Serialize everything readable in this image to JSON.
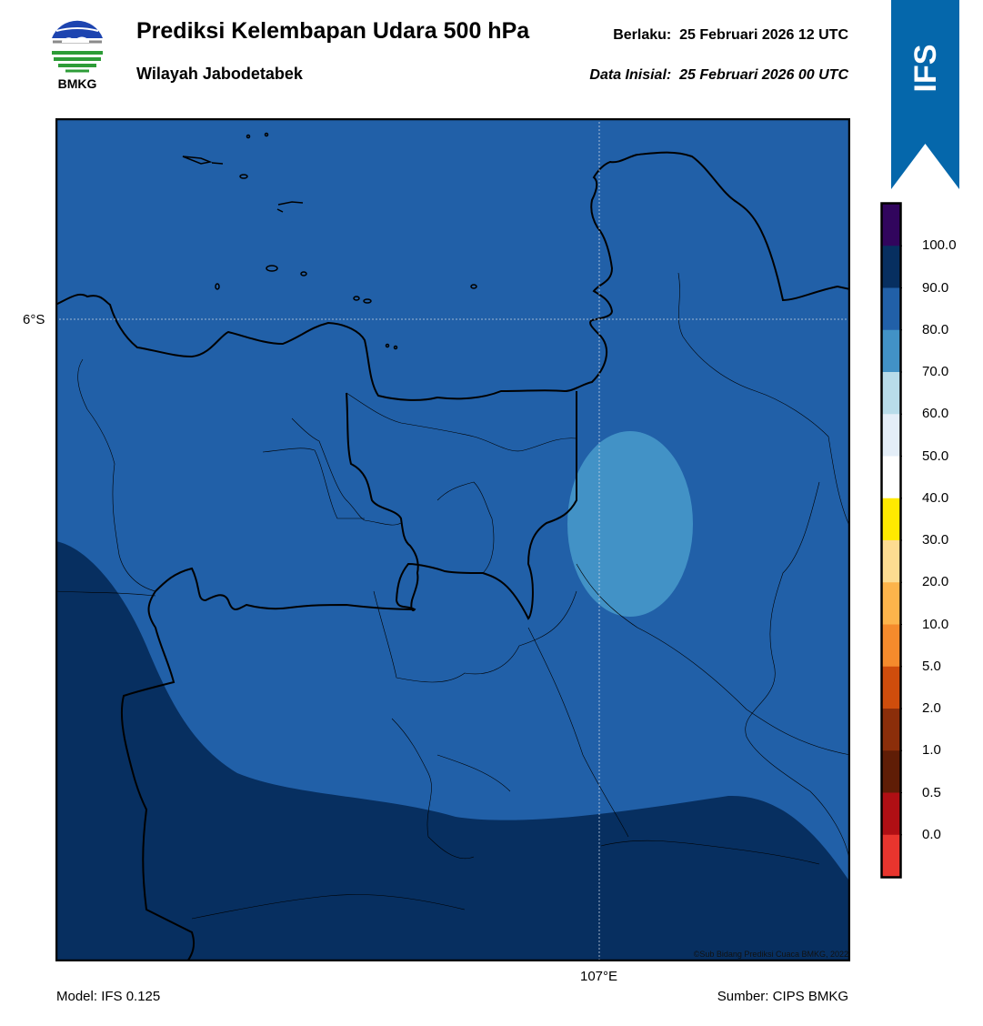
{
  "header": {
    "title": "Prediksi Kelembapan Udara 500 hPa",
    "subtitle": "Wilayah Jabodetabek",
    "valid_label": "Berlaku:",
    "valid_time": "25 Februari 2026 12 UTC",
    "init_label": "Data Inisial:",
    "init_time": "25 Februari 2026 00 UTC"
  },
  "logo": {
    "text": "BMKG",
    "icon": "bmkg-logo-icon"
  },
  "ribbon": {
    "text": "IFS",
    "color": "#0567ab"
  },
  "map": {
    "lat_label": "6°S",
    "lon_label": "107°E",
    "copyright": "©Sub Bidang Prediksi Cuaca BMKG, 2022",
    "fill_colors": {
      "80-90": "#2160a8",
      "90-100": "#072f60",
      "70-80": "#4292c6"
    }
  },
  "footer": {
    "model": "Model: IFS 0.125",
    "source": "Sumber: CIPS BMKG"
  },
  "colorbar": {
    "colors": [
      "#e8352e",
      "#b00f14",
      "#5f1d06",
      "#8b2e0a",
      "#cf4d0c",
      "#f58b2c",
      "#fdb44b",
      "#fddc91",
      "#ffe900",
      "#ffffff",
      "#e4eef8",
      "#b8dcea",
      "#4292c6",
      "#2160a8",
      "#072f60",
      "#31055d"
    ],
    "labels": [
      "0.0",
      "0.5",
      "1.0",
      "2.0",
      "5.0",
      "10.0",
      "20.0",
      "30.0",
      "40.0",
      "50.0",
      "60.0",
      "70.0",
      "80.0",
      "90.0",
      "100.0"
    ]
  }
}
